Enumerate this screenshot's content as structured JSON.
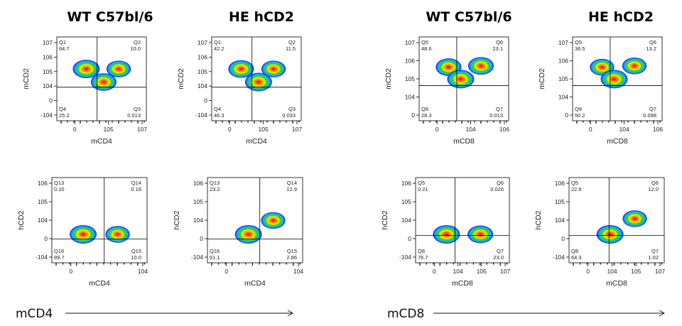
{
  "figure": {
    "column_titles": [
      "WT C57bl/6",
      "HE hCD2",
      "WT C57bl/6",
      "HE hCD2"
    ],
    "bottom_labels": [
      "mCD4",
      "mCD8"
    ],
    "colors": {
      "axis": "#000000",
      "quadrant": "#000000",
      "contour_outer": "#1010d0",
      "contour_inner": "#cc0000"
    }
  },
  "chart_data": [
    {
      "type": "scatter",
      "panel": "top-1",
      "xlabel": "mCD4",
      "ylabel": "mCD2",
      "xticks": [
        "0",
        "10^5",
        "10^7"
      ],
      "yticks": [
        "10^7",
        "10^6",
        "10^5",
        "10^4",
        "0",
        "-10^4"
      ],
      "quadrants": [
        {
          "name": "Q1",
          "value": "64.7"
        },
        {
          "name": "Q2",
          "value": "10.0"
        },
        {
          "name": "Q3",
          "value": "0.013"
        },
        {
          "name": "Q4",
          "value": "25.2"
        }
      ],
      "populations": [
        {
          "x": 0,
          "y": 20000,
          "intensity": 1.0
        },
        {
          "x": 60000,
          "y": 20000,
          "intensity": 0.8
        },
        {
          "x": 3000,
          "y": 1000,
          "intensity": 0.9
        }
      ]
    },
    {
      "type": "scatter",
      "panel": "top-2",
      "xlabel": "mCD4",
      "ylabel": "mCD2",
      "xticks": [
        "0",
        "10^5",
        "10^7"
      ],
      "yticks": [
        "10^7",
        "10^6",
        "10^5",
        "10^4",
        "0",
        "-10^4"
      ],
      "quadrants": [
        {
          "name": "Q1",
          "value": "42.2"
        },
        {
          "name": "Q2",
          "value": "11.5"
        },
        {
          "name": "Q3",
          "value": "0.033"
        },
        {
          "name": "Q4",
          "value": "46.3"
        }
      ],
      "populations": [
        {
          "x": 0,
          "y": 20000,
          "intensity": 0.9
        },
        {
          "x": 60000,
          "y": 20000,
          "intensity": 0.8
        },
        {
          "x": 3000,
          "y": 1000,
          "intensity": 1.0
        }
      ]
    },
    {
      "type": "scatter",
      "panel": "top-3",
      "xlabel": "mCD8",
      "ylabel": "mCD2",
      "xticks": [
        "0",
        "10^4",
        "10^6"
      ],
      "yticks": [
        "10^7",
        "10^6",
        "10^5",
        "10^4",
        "0"
      ],
      "quadrants": [
        {
          "name": "Q5",
          "value": "48.6"
        },
        {
          "name": "Q6",
          "value": "23.1"
        },
        {
          "name": "Q7",
          "value": "0.013"
        },
        {
          "name": "Q8",
          "value": "28.3"
        }
      ],
      "populations": [
        {
          "x": 0,
          "y": 30000,
          "intensity": 0.9
        },
        {
          "x": 60000,
          "y": 40000,
          "intensity": 0.9
        },
        {
          "x": 1000,
          "y": 2000,
          "intensity": 1.0
        }
      ]
    },
    {
      "type": "scatter",
      "panel": "top-4",
      "xlabel": "mCD8",
      "ylabel": "mCD2",
      "xticks": [
        "0",
        "10^4",
        "10^6"
      ],
      "yticks": [
        "10^7",
        "10^6",
        "10^5",
        "10^4",
        "0"
      ],
      "quadrants": [
        {
          "name": "Q5",
          "value": "36.5"
        },
        {
          "name": "Q6",
          "value": "13.2"
        },
        {
          "name": "Q7",
          "value": "0.098"
        },
        {
          "name": "Q8",
          "value": "50.2"
        }
      ],
      "populations": [
        {
          "x": 0,
          "y": 30000,
          "intensity": 0.8
        },
        {
          "x": 60000,
          "y": 40000,
          "intensity": 0.8
        },
        {
          "x": 1000,
          "y": 2000,
          "intensity": 1.0
        }
      ]
    },
    {
      "type": "scatter",
      "panel": "bottom-1",
      "xlabel": "mCD4",
      "ylabel": "hCD2",
      "xticks": [
        "0",
        "10^4"
      ],
      "yticks": [
        "10^6",
        "10^5",
        "10^4",
        "0",
        "-10^4"
      ],
      "quadrants": [
        {
          "name": "Q13",
          "value": "0.10"
        },
        {
          "name": "Q14",
          "value": "0.16"
        },
        {
          "name": "Q15",
          "value": "10.0"
        },
        {
          "name": "Q16",
          "value": "89.7"
        }
      ],
      "populations": [
        {
          "x": 0,
          "y": 0,
          "intensity": 1.0
        },
        {
          "x": 60000,
          "y": 0,
          "intensity": 0.8
        }
      ]
    },
    {
      "type": "scatter",
      "panel": "bottom-2",
      "xlabel": "mCD4",
      "ylabel": "hCD2",
      "xticks": [
        "0",
        "10^4"
      ],
      "yticks": [
        "10^6",
        "10^5",
        "10^4",
        "0",
        "-10^4"
      ],
      "quadrants": [
        {
          "name": "Q13",
          "value": "23.2"
        },
        {
          "name": "Q14",
          "value": "12.9"
        },
        {
          "name": "Q15",
          "value": "2.86"
        },
        {
          "name": "Q16",
          "value": "61.1"
        }
      ],
      "populations": [
        {
          "x": 500,
          "y": 0,
          "intensity": 1.0
        },
        {
          "x": 60000,
          "y": 2000,
          "intensity": 0.8
        }
      ]
    },
    {
      "type": "scatter",
      "panel": "bottom-3",
      "xlabel": "mCD8",
      "ylabel": "hCD2",
      "xticks": [
        "0",
        "10^4",
        "10^5",
        "10^7"
      ],
      "yticks": [
        "10^6",
        "10^5",
        "10^4",
        "0",
        "-10^4"
      ],
      "quadrants": [
        {
          "name": "Q5",
          "value": "0.21"
        },
        {
          "name": "Q6",
          "value": "0.026"
        },
        {
          "name": "Q7",
          "value": "23.0"
        },
        {
          "name": "Q8",
          "value": "76.7"
        }
      ],
      "populations": [
        {
          "x": 0,
          "y": 0,
          "intensity": 1.0
        },
        {
          "x": 60000,
          "y": 0,
          "intensity": 0.9
        }
      ]
    },
    {
      "type": "scatter",
      "panel": "bottom-4",
      "xlabel": "mCD8",
      "ylabel": "hCD2",
      "xticks": [
        "0",
        "10^4",
        "10^5",
        "10^7"
      ],
      "yticks": [
        "10^6",
        "10^5",
        "10^4",
        "0",
        "-10^4"
      ],
      "quadrants": [
        {
          "name": "Q5",
          "value": "22.6"
        },
        {
          "name": "Q6",
          "value": "12.0"
        },
        {
          "name": "Q7",
          "value": "1.02"
        },
        {
          "name": "Q8",
          "value": "64.3"
        }
      ],
      "populations": [
        {
          "x": 500,
          "y": 0,
          "intensity": 1.0
        },
        {
          "x": 60000,
          "y": 3000,
          "intensity": 0.8
        }
      ]
    }
  ]
}
